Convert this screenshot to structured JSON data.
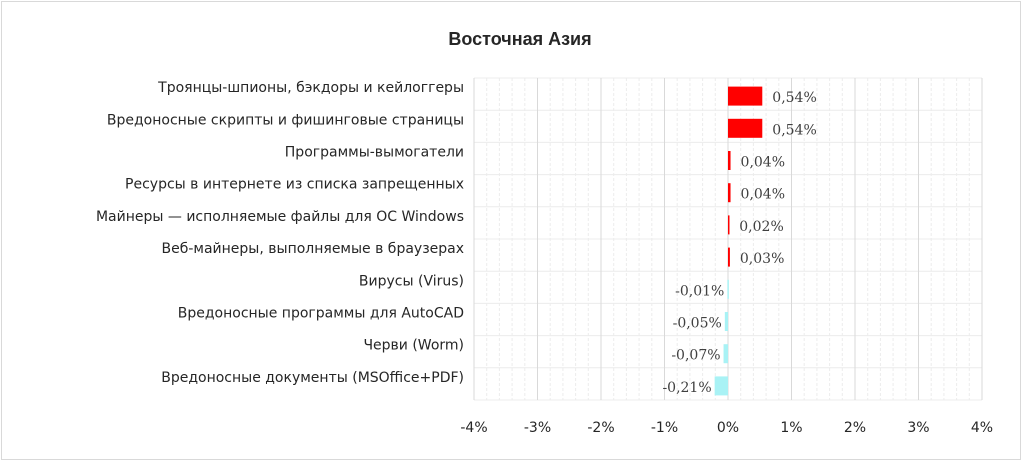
{
  "chart_data": {
    "type": "bar",
    "orientation": "horizontal",
    "title": "Восточная Азия",
    "xlabel": "",
    "ylabel": "",
    "xlim": [
      -4,
      4
    ],
    "x_ticks": [
      "-4%",
      "-3%",
      "-2%",
      "-1%",
      "0%",
      "1%",
      "2%",
      "3%",
      "4%"
    ],
    "categories": [
      "Троянцы-шпионы, бэкдоры и кейлоггеры",
      "Вредоносные скрипты и фишинговые страницы",
      "Программы-вымогатели",
      "Ресурсы в интернете из списка запрещенных",
      "Майнеры — исполняемые файлы для ОС Windows",
      "Веб-майнеры, выполняемые в браузерах",
      "Вирусы (Virus)",
      "Вредоносные программы для AutoCAD",
      "Черви (Worm)",
      "Вредоносные документы (MSOffice+PDF)"
    ],
    "values": [
      0.54,
      0.54,
      0.04,
      0.04,
      0.02,
      0.03,
      -0.01,
      -0.05,
      -0.07,
      -0.21
    ],
    "data_labels": [
      "0,54%",
      "0,54%",
      "0,04%",
      "0,04%",
      "0,02%",
      "0,03%",
      "-0,01%",
      "-0,05%",
      "-0,07%",
      "-0,21%"
    ],
    "colors": {
      "positive": "#ff0000",
      "negative": "#a9f2f5"
    },
    "grid": true,
    "legend": "none"
  }
}
